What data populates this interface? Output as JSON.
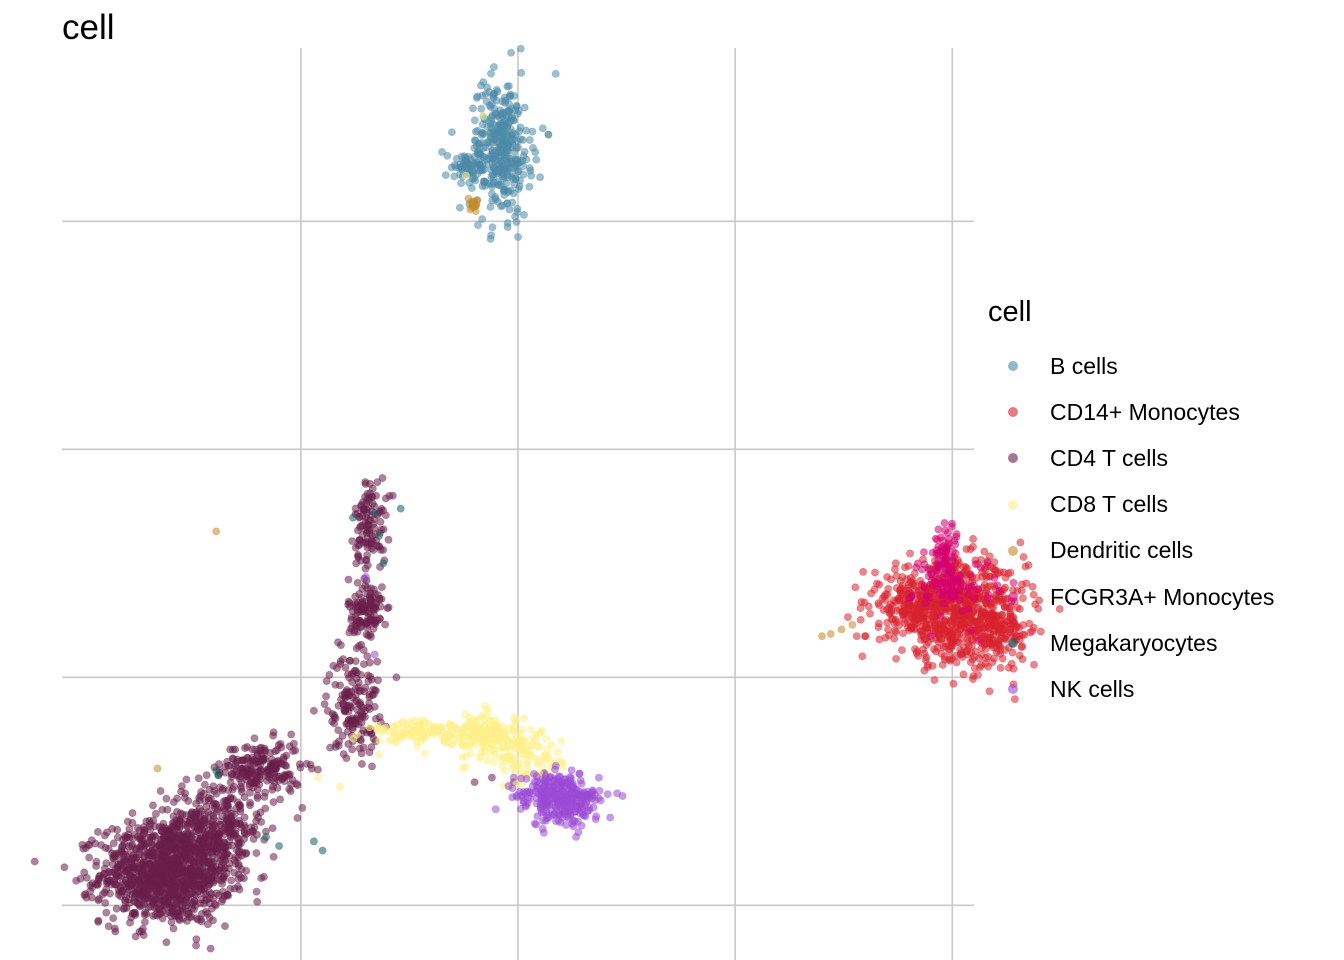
{
  "chart_data": {
    "type": "scatter",
    "title": "cell",
    "xlabel": "",
    "ylabel": "",
    "grid": true,
    "legend_position": "right",
    "legend_title": "cell",
    "xlim": [
      -5.5,
      15.5
    ],
    "ylim": [
      -5.2,
      14.8
    ],
    "gridlines_x": [
      0,
      5,
      10,
      15
    ],
    "gridlines_y": [
      -4,
      1,
      6,
      11
    ],
    "series": [
      {
        "name": "B cells",
        "color": "#4d8aa8",
        "clusters": [
          {
            "cx": 4.6,
            "cy": 12.6,
            "sx": 0.35,
            "sy": 0.75,
            "n": 340
          },
          {
            "cx": 3.9,
            "cy": 12.2,
            "sx": 0.3,
            "sy": 0.2,
            "n": 60
          }
        ],
        "points": [
          [
            4.2,
            13.3
          ],
          [
            4.4,
            11.6
          ],
          [
            5.0,
            12.1
          ]
        ]
      },
      {
        "name": "CD14+ Monocytes",
        "color": "#d8222f",
        "clusters": [
          {
            "cx": 15.2,
            "cy": 2.4,
            "sx": 0.75,
            "sy": 0.55,
            "n": 650
          },
          {
            "cx": 14.1,
            "cy": 2.6,
            "sx": 0.45,
            "sy": 0.3,
            "n": 180
          },
          {
            "cx": 16.1,
            "cy": 1.9,
            "sx": 0.3,
            "sy": 0.3,
            "n": 90
          }
        ],
        "points": [
          [
            13.5,
            2.2
          ],
          [
            13.3,
            2.1
          ],
          [
            13.0,
            1.9
          ],
          [
            12.8,
            1.9
          ],
          [
            13.9,
            2.9
          ]
        ]
      },
      {
        "name": "CD4 T cells",
        "color": "#6a1f4b",
        "clusters": [
          {
            "cx": -3.1,
            "cy": -3.3,
            "sx": 0.75,
            "sy": 0.55,
            "n": 1100
          },
          {
            "cx": -2.0,
            "cy": -2.3,
            "sx": 0.6,
            "sy": 0.5,
            "n": 350
          },
          {
            "cx": -0.9,
            "cy": -1.0,
            "sx": 0.45,
            "sy": 0.3,
            "n": 200
          },
          {
            "cx": 1.2,
            "cy": 0.4,
            "sx": 0.3,
            "sy": 0.55,
            "n": 160
          },
          {
            "cx": 1.5,
            "cy": 2.4,
            "sx": 0.2,
            "sy": 0.4,
            "n": 120
          },
          {
            "cx": 1.6,
            "cy": 4.4,
            "sx": 0.18,
            "sy": 0.5,
            "n": 110
          }
        ],
        "points": [
          [
            2.2,
            1.0
          ],
          [
            4.4,
            -1.2
          ],
          [
            4.0,
            -1.3
          ],
          [
            5.6,
            -1.1
          ],
          [
            4.9,
            -1.3
          ]
        ]
      },
      {
        "name": "CD8 T cells",
        "color": "#fdf08a",
        "clusters": [
          {
            "cx": 4.3,
            "cy": -0.3,
            "sx": 0.4,
            "sy": 0.25,
            "n": 180
          },
          {
            "cx": 2.8,
            "cy": -0.2,
            "sx": 0.6,
            "sy": 0.12,
            "n": 110
          },
          {
            "cx": 5.2,
            "cy": -0.8,
            "sx": 0.4,
            "sy": 0.3,
            "n": 90
          }
        ],
        "points": [
          [
            1.8,
            -0.7
          ],
          [
            0.9,
            -1.4
          ],
          [
            4.2,
            13.3
          ],
          [
            3.8,
            12.0
          ],
          [
            0.4,
            -1.2
          ]
        ]
      },
      {
        "name": "Dendritic cells",
        "color": "#c58a25",
        "clusters": [
          {
            "cx": 4.0,
            "cy": 11.4,
            "sx": 0.07,
            "sy": 0.07,
            "n": 12
          }
        ],
        "points": [
          [
            12.0,
            1.9
          ],
          [
            12.2,
            1.95
          ],
          [
            12.45,
            2.05
          ],
          [
            12.7,
            2.15
          ],
          [
            -1.95,
            4.2
          ],
          [
            -3.3,
            -1.0
          ],
          [
            3.95,
            11.35
          ]
        ]
      },
      {
        "name": "FCGR3A+ Monocytes",
        "color": "#d6006e",
        "clusters": [
          {
            "cx": 14.8,
            "cy": 3.6,
            "sx": 0.18,
            "sy": 0.4,
            "n": 90
          },
          {
            "cx": 15.1,
            "cy": 3.0,
            "sx": 0.5,
            "sy": 0.3,
            "n": 60
          }
        ],
        "points": [
          [
            14.1,
            2.8
          ],
          [
            15.6,
            1.8
          ],
          [
            14.5,
            1.9
          ]
        ]
      },
      {
        "name": "Megakaryocytes",
        "color": "#106062",
        "clusters": [],
        "points": [
          [
            -1.95,
            -1.05
          ],
          [
            -1.9,
            -1.15
          ],
          [
            2.3,
            4.7
          ],
          [
            1.7,
            4.6
          ],
          [
            1.2,
            4.5
          ],
          [
            1.9,
            3.5
          ],
          [
            0.3,
            -2.6
          ],
          [
            -0.8,
            -2.5
          ],
          [
            -0.5,
            -2.7
          ],
          [
            0.5,
            -2.8
          ],
          [
            5.7,
            12.9
          ],
          [
            1.8,
            4.1
          ]
        ]
      },
      {
        "name": "NK cells",
        "color": "#9b4ad6",
        "clusters": [
          {
            "cx": 6.1,
            "cy": -1.7,
            "sx": 0.4,
            "sy": 0.28,
            "n": 260
          },
          {
            "cx": 5.4,
            "cy": -1.5,
            "sx": 0.35,
            "sy": 0.2,
            "n": 50
          }
        ],
        "points": [
          [
            4.9,
            -1.2
          ],
          [
            1.5,
            3.2
          ],
          [
            1.7,
            1.5
          ]
        ]
      }
    ]
  }
}
